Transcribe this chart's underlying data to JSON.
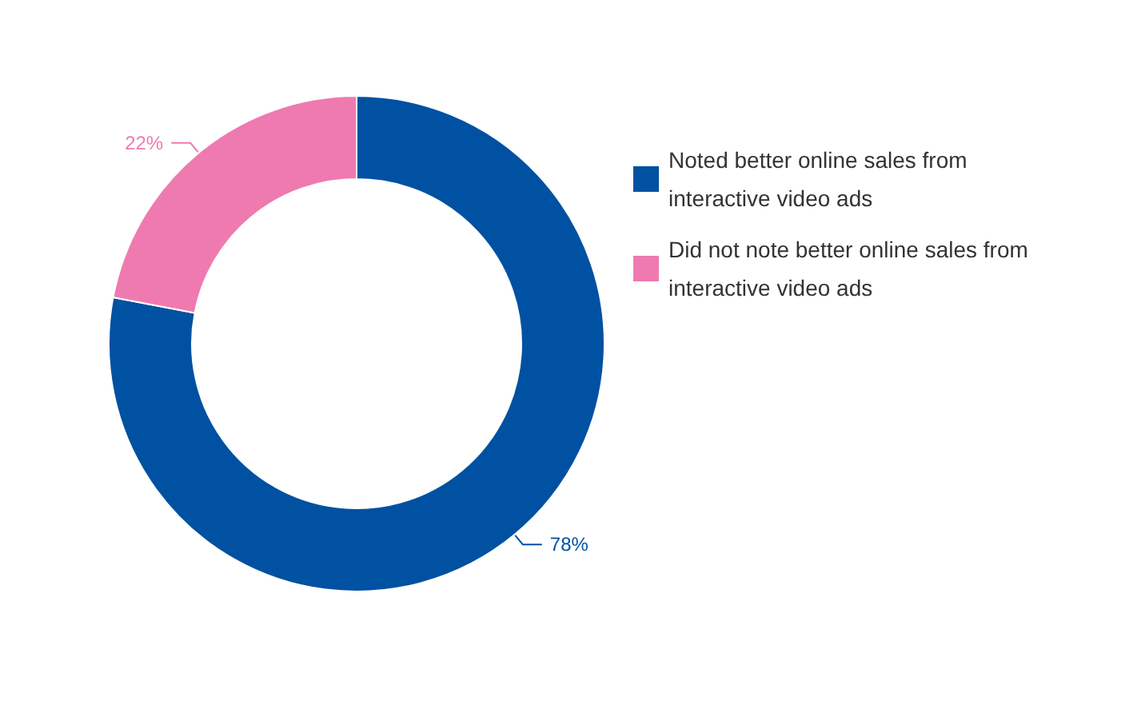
{
  "chart_data": {
    "type": "donut",
    "categories": [
      "Noted better online sales from interactive video ads",
      "Did not note better online sales from interactive video ads"
    ],
    "values": [
      78,
      22
    ],
    "colors": [
      "#0051a2",
      "#ef7ab0"
    ],
    "legend": "right",
    "value_labels": [
      "78%",
      "22%"
    ]
  }
}
